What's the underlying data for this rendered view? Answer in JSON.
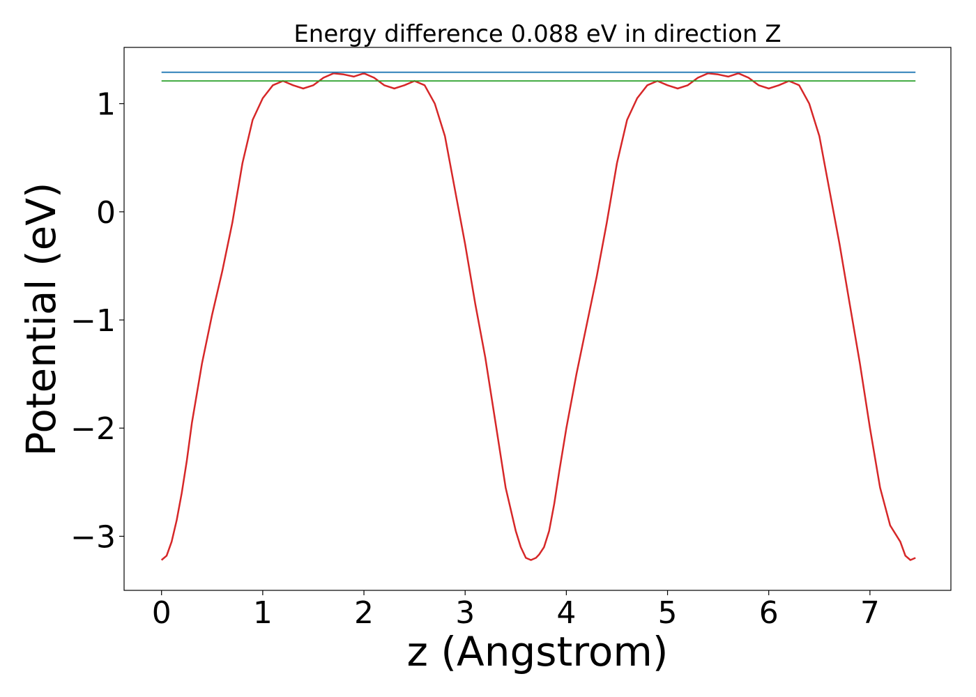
{
  "chart_data": {
    "type": "line",
    "title": "Energy difference 0.088 eV in direction Z",
    "xlabel": "z (Angstrom)",
    "ylabel": "Potential (eV)",
    "xlim": [
      -0.37,
      7.8
    ],
    "ylim": [
      -3.5,
      1.52
    ],
    "x_ticks": [
      0,
      1,
      2,
      3,
      4,
      5,
      6,
      7
    ],
    "x_tick_labels": [
      "0",
      "1",
      "2",
      "3",
      "4",
      "5",
      "6",
      "7"
    ],
    "y_ticks": [
      -3,
      -2,
      -1,
      0,
      1
    ],
    "y_tick_labels": [
      "−3",
      "−2",
      "−1",
      "0",
      "1"
    ],
    "grid": false,
    "legend": "none",
    "series": [
      {
        "color": "#d62728",
        "x": [
          0,
          0.05,
          0.1,
          0.15,
          0.2,
          0.25,
          0.3,
          0.4,
          0.5,
          0.6,
          0.7,
          0.8,
          0.9,
          1.0,
          1.1,
          1.2,
          1.3,
          1.4,
          1.5,
          1.6,
          1.7,
          1.8,
          1.9,
          2.0,
          2.1,
          2.2,
          2.3,
          2.4,
          2.5,
          2.6,
          2.7,
          2.8,
          2.9,
          3.0,
          3.1,
          3.2,
          3.3,
          3.4,
          3.5,
          3.55,
          3.6,
          3.65,
          3.7,
          3.73,
          3.78,
          3.83,
          3.88,
          3.93,
          4.0,
          4.1,
          4.2,
          4.3,
          4.4,
          4.5,
          4.6,
          4.7,
          4.8,
          4.9,
          5.0,
          5.1,
          5.2,
          5.3,
          5.4,
          5.5,
          5.6,
          5.7,
          5.8,
          5.9,
          6.0,
          6.1,
          6.2,
          6.3,
          6.4,
          6.5,
          6.6,
          6.7,
          6.8,
          6.9,
          7.0,
          7.1,
          7.2,
          7.3,
          7.35,
          7.4,
          7.45
        ],
        "y": [
          -3.22,
          -3.18,
          -3.05,
          -2.85,
          -2.6,
          -2.3,
          -1.95,
          -1.4,
          -0.95,
          -0.55,
          -0.1,
          0.45,
          0.85,
          1.05,
          1.17,
          1.21,
          1.17,
          1.14,
          1.17,
          1.24,
          1.28,
          1.27,
          1.25,
          1.28,
          1.24,
          1.17,
          1.14,
          1.17,
          1.21,
          1.17,
          1.0,
          0.7,
          0.2,
          -0.3,
          -0.85,
          -1.35,
          -1.95,
          -2.55,
          -2.95,
          -3.1,
          -3.2,
          -3.22,
          -3.2,
          -3.17,
          -3.1,
          -2.95,
          -2.7,
          -2.4,
          -2.0,
          -1.5,
          -1.05,
          -0.6,
          -0.1,
          0.45,
          0.85,
          1.05,
          1.17,
          1.21,
          1.17,
          1.14,
          1.17,
          1.24,
          1.28,
          1.27,
          1.25,
          1.28,
          1.24,
          1.17,
          1.14,
          1.17,
          1.21,
          1.17,
          1.0,
          0.7,
          0.2,
          -0.3,
          -0.85,
          -1.4,
          -2.0,
          -2.55,
          -2.9,
          -3.05,
          -3.18,
          -3.22,
          -3.2
        ]
      },
      {
        "color": "#1f77b4",
        "x": [
          0,
          7.45
        ],
        "y": [
          1.29,
          1.29
        ]
      },
      {
        "color": "#2ca02c",
        "x": [
          0,
          7.45
        ],
        "y": [
          1.21,
          1.21
        ]
      }
    ]
  }
}
